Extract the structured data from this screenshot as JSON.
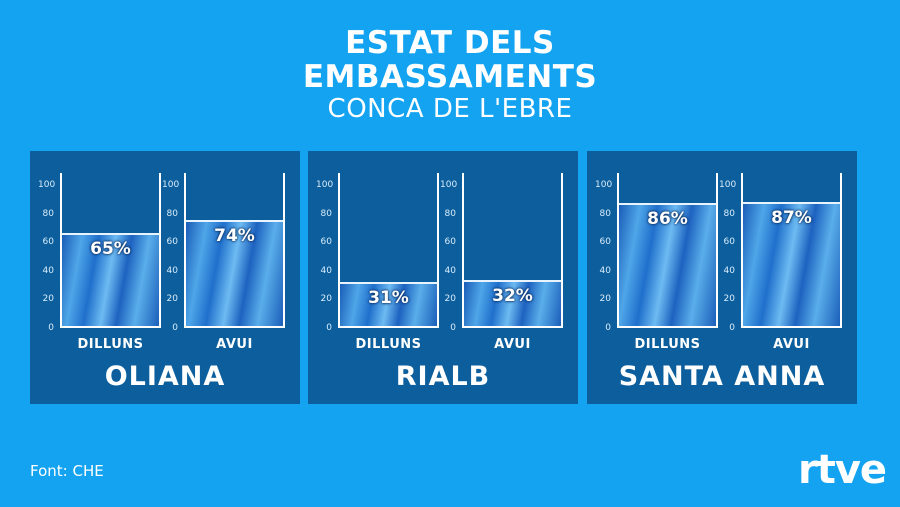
{
  "title_lines": [
    "ESTAT DELS",
    "EMBASSAMENTS"
  ],
  "subtitle": "CONCA DE L'EBRE",
  "source": "Font: CHE",
  "logo_text": "rtve",
  "colors": {
    "background": "#14a3f0",
    "panel": "#0c5f9c",
    "water": "#2f86da",
    "text": "#ffffff"
  },
  "chart_data": {
    "type": "bar",
    "title": "ESTAT DELS EMBASSAMENTS",
    "subtitle": "CONCA DE L'EBRE",
    "ylim": [
      0,
      100
    ],
    "yticks": [
      0,
      20,
      40,
      60,
      80,
      100
    ],
    "series_labels": [
      "DILLUNS",
      "AVUI"
    ],
    "reservoirs": [
      {
        "name": "OLIANA",
        "values": [
          65,
          74
        ],
        "labels": [
          "65%",
          "74%"
        ]
      },
      {
        "name": "RIALB",
        "values": [
          31,
          32
        ],
        "labels": [
          "31%",
          "32%"
        ]
      },
      {
        "name": "SANTA ANNA",
        "values": [
          86,
          87
        ],
        "labels": [
          "86%",
          "87%"
        ]
      }
    ]
  }
}
